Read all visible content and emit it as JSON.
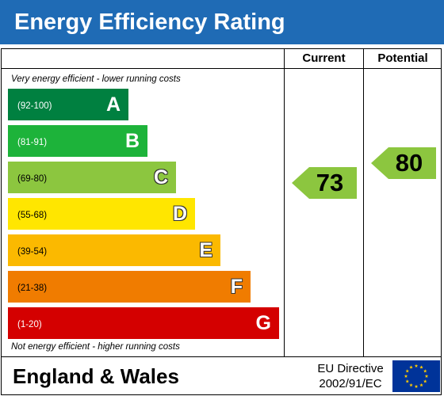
{
  "title": "Energy Efficiency Rating",
  "columns": {
    "current": "Current",
    "potential": "Potential"
  },
  "notes": {
    "top": "Very energy efficient - lower running costs",
    "bottom": "Not energy efficient - higher running costs"
  },
  "bands": [
    {
      "letter": "A",
      "range": "(92-100)",
      "color": "#008040"
    },
    {
      "letter": "B",
      "range": "(81-91)",
      "color": "#1db33a"
    },
    {
      "letter": "C",
      "range": "(69-80)",
      "color": "#8cc63f"
    },
    {
      "letter": "D",
      "range": "(55-68)",
      "color": "#ffe600"
    },
    {
      "letter": "E",
      "range": "(39-54)",
      "color": "#fbb900"
    },
    {
      "letter": "F",
      "range": "(21-38)",
      "color": "#f07c00"
    },
    {
      "letter": "G",
      "range": "(1-20)",
      "color": "#d40000"
    }
  ],
  "ratings": {
    "current": {
      "value": "73",
      "band": "C",
      "color": "#8cc63f"
    },
    "potential": {
      "value": "80",
      "band": "C",
      "color": "#8cc63f"
    }
  },
  "footer": {
    "region": "England & Wales",
    "directive_line1": "EU Directive",
    "directive_line2": "2002/91/EC",
    "flag_icon": "eu-flag-icon"
  }
}
